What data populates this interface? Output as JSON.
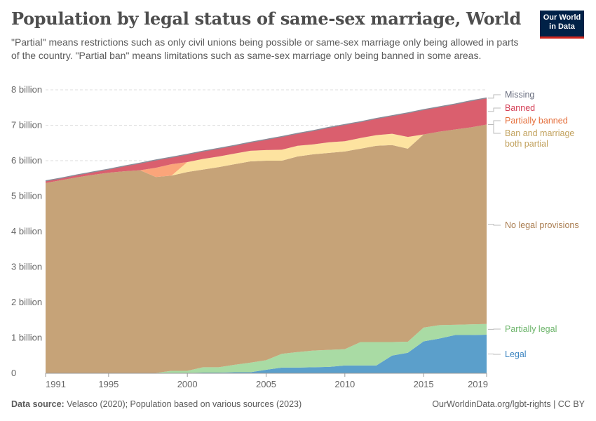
{
  "header": {
    "title": "Population by legal status of same-sex marriage, World",
    "subtitle": "\"Partial\" means restrictions such as only civil unions being possible or same-sex marriage only being allowed in parts of the country. \"Partial ban\" means limitations such as same-sex marriage only being banned in some areas.",
    "logo_text": "Our World in Data"
  },
  "footer": {
    "source_label": "Data source:",
    "source_text": "Velasco (2020); Population based on various sources (2023)",
    "url_license": "OurWorldinData.org/lgbt-rights | CC BY"
  },
  "chart_data": {
    "type": "area",
    "stacked": true,
    "title": "Population by legal status of same-sex marriage, World",
    "xlabel": "",
    "ylabel": "",
    "ylim": [
      0,
      8
    ],
    "y_unit": "billion",
    "grid": "horizontal dashed",
    "legend": "right (inline labels)",
    "x_ticks": [
      "1991",
      "1995",
      "2000",
      "2005",
      "2010",
      "2015",
      "2019"
    ],
    "y_ticks": [
      "0",
      "1 billion",
      "2 billion",
      "3 billion",
      "4 billion",
      "5 billion",
      "6 billion",
      "7 billion",
      "8 billion"
    ],
    "x": [
      1991,
      1992,
      1993,
      1994,
      1995,
      1996,
      1997,
      1998,
      1999,
      2000,
      2001,
      2002,
      2003,
      2004,
      2005,
      2006,
      2007,
      2008,
      2009,
      2010,
      2011,
      2012,
      2013,
      2014,
      2015,
      2016,
      2017,
      2018,
      2019
    ],
    "series": [
      {
        "name": "Legal",
        "color": "#5b9fcb",
        "label_color": "#3b84c0",
        "values": [
          0,
          0,
          0,
          0,
          0,
          0,
          0,
          0,
          0.01,
          0.01,
          0.02,
          0.02,
          0.03,
          0.03,
          0.1,
          0.16,
          0.16,
          0.17,
          0.18,
          0.22,
          0.22,
          0.22,
          0.5,
          0.58,
          0.9,
          0.98,
          1.08,
          1.08,
          1.09
        ]
      },
      {
        "name": "Partially legal",
        "color": "#a9dba4",
        "label_color": "#6cb46a",
        "values": [
          0,
          0,
          0,
          0,
          0,
          0,
          0,
          0.01,
          0.06,
          0.06,
          0.15,
          0.15,
          0.21,
          0.27,
          0.27,
          0.39,
          0.44,
          0.47,
          0.48,
          0.46,
          0.66,
          0.66,
          0.38,
          0.31,
          0.39,
          0.38,
          0.29,
          0.3,
          0.3
        ]
      },
      {
        "name": "No legal provisions",
        "color": "#c6a378",
        "label_color": "#a97c4f",
        "values": [
          5.37,
          5.45,
          5.53,
          5.6,
          5.66,
          5.7,
          5.73,
          5.53,
          5.51,
          5.61,
          5.58,
          5.65,
          5.66,
          5.68,
          5.63,
          5.45,
          5.52,
          5.54,
          5.56,
          5.58,
          5.46,
          5.54,
          5.56,
          5.45,
          5.45,
          5.46,
          5.51,
          5.56,
          5.63
        ]
      },
      {
        "name": "Ban and marriage both partial",
        "color": "#fde3a0",
        "label_color": "#c2a25e",
        "values": [
          0,
          0,
          0,
          0,
          0,
          0,
          0,
          0,
          0,
          0.28,
          0.3,
          0.3,
          0.3,
          0.3,
          0.3,
          0.31,
          0.3,
          0.28,
          0.3,
          0.29,
          0.3,
          0.3,
          0.32,
          0.33,
          0,
          0,
          0,
          0,
          0
        ]
      },
      {
        "name": "Partially banned",
        "color": "#fba57a",
        "label_color": "#e56e3a",
        "values": [
          0,
          0,
          0,
          0,
          0,
          0,
          0,
          0.26,
          0.32,
          0,
          0,
          0,
          0,
          0,
          0,
          0,
          0,
          0,
          0,
          0,
          0,
          0,
          0,
          0,
          0,
          0,
          0,
          0,
          0
        ]
      },
      {
        "name": "Banned",
        "color": "#da5f6e",
        "label_color": "#d43f55",
        "values": [
          0.05,
          0.05,
          0.06,
          0.07,
          0.09,
          0.14,
          0.19,
          0.21,
          0.19,
          0.21,
          0.21,
          0.22,
          0.22,
          0.23,
          0.29,
          0.36,
          0.34,
          0.38,
          0.41,
          0.46,
          0.45,
          0.46,
          0.5,
          0.67,
          0.69,
          0.69,
          0.71,
          0.74,
          0.74
        ]
      },
      {
        "name": "Missing",
        "color": "#8a8d99",
        "label_color": "#6b7080",
        "values": [
          0.01,
          0.01,
          0.01,
          0.01,
          0.01,
          0.01,
          0.01,
          0.01,
          0.01,
          0.01,
          0.01,
          0.01,
          0.01,
          0.01,
          0.01,
          0.01,
          0.01,
          0.01,
          0.01,
          0.01,
          0.01,
          0.01,
          0.01,
          0.01,
          0.01,
          0.01,
          0.01,
          0.01,
          0.01
        ]
      }
    ]
  }
}
